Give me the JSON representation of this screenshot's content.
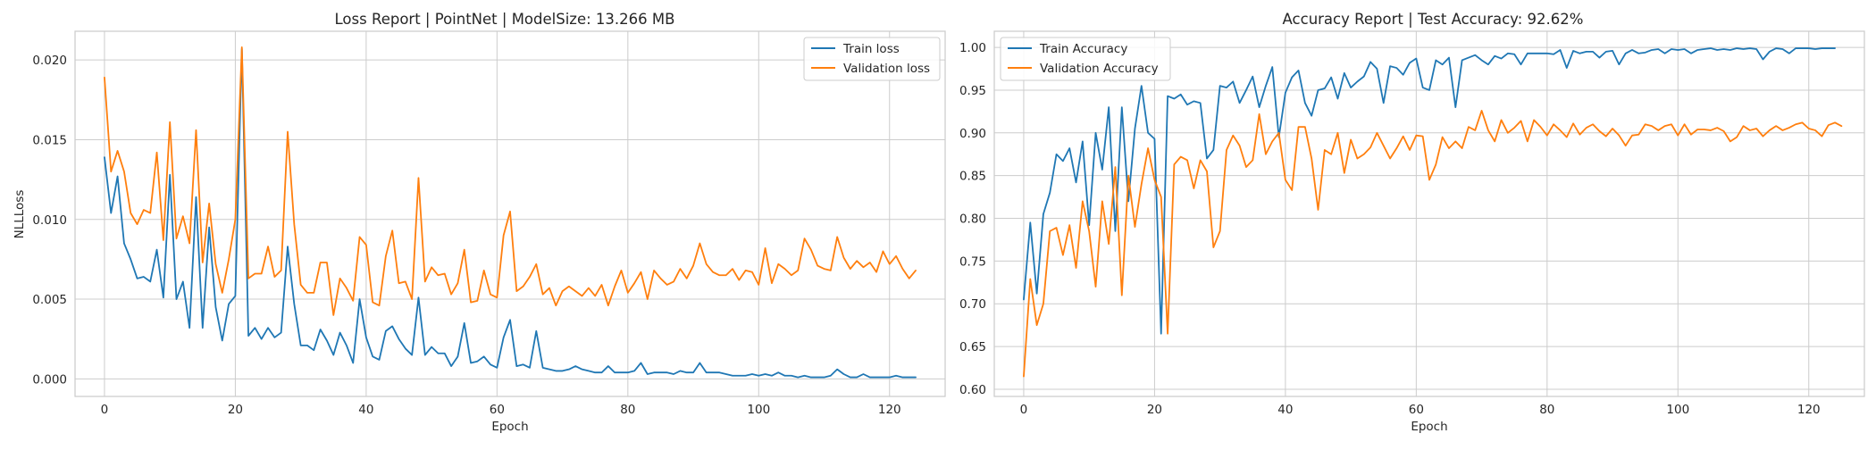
{
  "chart_data": [
    {
      "type": "line",
      "title": "Loss Report | PointNet | ModelSize: 13.266 MB",
      "xlabel": "Epoch",
      "ylabel": "NLLLoss",
      "xlim": [
        -4.5,
        128.5
      ],
      "ylim": [
        -0.0011,
        0.0218
      ],
      "xticks": [
        0,
        20,
        40,
        60,
        80,
        100,
        120
      ],
      "yticks": [
        0.0,
        0.005,
        0.01,
        0.015,
        0.02
      ],
      "ytick_format": 3,
      "grid": true,
      "legend_position": "upper right",
      "series": [
        {
          "name": "Train loss",
          "color": "#1f77b4",
          "values": [
            0.0139,
            0.0104,
            0.0127,
            0.0085,
            0.0075,
            0.0063,
            0.0064,
            0.0061,
            0.0081,
            0.0051,
            0.0128,
            0.005,
            0.0061,
            0.0032,
            0.0114,
            0.0032,
            0.0095,
            0.0045,
            0.0024,
            0.0047,
            0.0052,
            0.0207,
            0.0027,
            0.0032,
            0.0025,
            0.0032,
            0.0026,
            0.0029,
            0.0083,
            0.0047,
            0.0021,
            0.0021,
            0.0018,
            0.0031,
            0.0024,
            0.0015,
            0.0029,
            0.0021,
            0.001,
            0.005,
            0.0026,
            0.0014,
            0.0012,
            0.003,
            0.0033,
            0.0025,
            0.0019,
            0.0015,
            0.0051,
            0.0015,
            0.002,
            0.0016,
            0.0016,
            0.0008,
            0.0014,
            0.0035,
            0.001,
            0.0011,
            0.0014,
            0.0009,
            0.0007,
            0.0026,
            0.0037,
            0.0008,
            0.0009,
            0.0007,
            0.003,
            0.0007,
            0.0006,
            0.0005,
            0.0005,
            0.0006,
            0.0008,
            0.0006,
            0.0005,
            0.0004,
            0.0004,
            0.0008,
            0.0004,
            0.0004,
            0.0004,
            0.0005,
            0.001,
            0.0003,
            0.0004,
            0.0004,
            0.0004,
            0.0003,
            0.0005,
            0.0004,
            0.0004,
            0.001,
            0.0004,
            0.0004,
            0.0004,
            0.0003,
            0.0002,
            0.0002,
            0.0002,
            0.0003,
            0.0002,
            0.0003,
            0.0002,
            0.0004,
            0.0002,
            0.0002,
            0.0001,
            0.0002,
            0.0001,
            0.0001,
            0.0001,
            0.0002,
            0.0006,
            0.0003,
            0.0001,
            0.0001,
            0.0003,
            0.0001,
            0.0001,
            0.0001,
            0.0001,
            0.0002,
            0.0001,
            0.0001,
            0.0001
          ]
        },
        {
          "name": "Validation loss",
          "color": "#ff7f0e",
          "values": [
            0.0189,
            0.013,
            0.0143,
            0.013,
            0.0104,
            0.0097,
            0.0106,
            0.0104,
            0.0142,
            0.0087,
            0.0161,
            0.0088,
            0.0102,
            0.0085,
            0.0156,
            0.0073,
            0.011,
            0.0072,
            0.0054,
            0.0075,
            0.01,
            0.0208,
            0.0063,
            0.0066,
            0.0066,
            0.0083,
            0.0064,
            0.0068,
            0.0155,
            0.0097,
            0.0059,
            0.0054,
            0.0054,
            0.0073,
            0.0073,
            0.004,
            0.0063,
            0.0057,
            0.0049,
            0.0089,
            0.0084,
            0.0048,
            0.0046,
            0.0077,
            0.0093,
            0.006,
            0.0061,
            0.005,
            0.0126,
            0.0061,
            0.007,
            0.0065,
            0.0066,
            0.0053,
            0.006,
            0.0081,
            0.0048,
            0.0049,
            0.0068,
            0.0053,
            0.0051,
            0.009,
            0.0105,
            0.0055,
            0.0058,
            0.0064,
            0.0072,
            0.0053,
            0.0057,
            0.0046,
            0.0055,
            0.0058,
            0.0055,
            0.0052,
            0.0057,
            0.0052,
            0.0059,
            0.0046,
            0.0058,
            0.0068,
            0.0054,
            0.006,
            0.0067,
            0.005,
            0.0068,
            0.0063,
            0.0059,
            0.0061,
            0.0069,
            0.0063,
            0.0071,
            0.0085,
            0.0072,
            0.0067,
            0.0065,
            0.0065,
            0.0069,
            0.0062,
            0.0068,
            0.0067,
            0.0059,
            0.0082,
            0.006,
            0.0072,
            0.0069,
            0.0065,
            0.0068,
            0.0088,
            0.0081,
            0.0071,
            0.0069,
            0.0068,
            0.0089,
            0.0076,
            0.0069,
            0.0074,
            0.007,
            0.0073,
            0.0067,
            0.008,
            0.0072,
            0.0077,
            0.0069,
            0.0063,
            0.0068
          ]
        }
      ]
    },
    {
      "type": "line",
      "title": "Accuracy Report | Test Accuracy: 92.62%",
      "xlabel": "Epoch",
      "ylabel": "",
      "xlim": [
        -4.5,
        128.5
      ],
      "ylim": [
        0.5916,
        1.0189
      ],
      "xticks": [
        0,
        20,
        40,
        60,
        80,
        100,
        120
      ],
      "yticks": [
        0.6,
        0.65,
        0.7,
        0.75,
        0.8,
        0.85,
        0.9,
        0.95,
        1.0
      ],
      "ytick_format": 2,
      "grid": true,
      "legend_position": "upper left",
      "series": [
        {
          "name": "Train Accuracy",
          "color": "#1f77b4",
          "values": [
            0.705,
            0.795,
            0.712,
            0.805,
            0.83,
            0.875,
            0.867,
            0.882,
            0.842,
            0.89,
            0.792,
            0.9,
            0.857,
            0.93,
            0.785,
            0.93,
            0.82,
            0.905,
            0.955,
            0.9,
            0.893,
            0.665,
            0.943,
            0.94,
            0.945,
            0.933,
            0.937,
            0.935,
            0.87,
            0.88,
            0.955,
            0.953,
            0.96,
            0.935,
            0.95,
            0.966,
            0.93,
            0.955,
            0.977,
            0.895,
            0.947,
            0.965,
            0.973,
            0.935,
            0.92,
            0.95,
            0.952,
            0.965,
            0.94,
            0.97,
            0.953,
            0.96,
            0.966,
            0.983,
            0.975,
            0.935,
            0.978,
            0.976,
            0.968,
            0.982,
            0.987,
            0.953,
            0.95,
            0.985,
            0.98,
            0.988,
            0.93,
            0.985,
            0.988,
            0.991,
            0.985,
            0.98,
            0.99,
            0.987,
            0.993,
            0.992,
            0.98,
            0.993,
            0.993,
            0.993,
            0.993,
            0.992,
            0.997,
            0.976,
            0.996,
            0.993,
            0.995,
            0.995,
            0.988,
            0.995,
            0.996,
            0.98,
            0.993,
            0.997,
            0.993,
            0.994,
            0.997,
            0.998,
            0.993,
            0.998,
            0.997,
            0.998,
            0.993,
            0.997,
            0.998,
            0.999,
            0.997,
            0.998,
            0.997,
            0.999,
            0.998,
            0.999,
            0.998,
            0.986,
            0.995,
            0.999,
            0.998,
            0.993,
            0.999,
            0.999,
            0.999,
            0.998,
            0.999,
            0.999,
            0.999
          ]
        },
        {
          "name": "Validation Accuracy",
          "color": "#ff7f0e",
          "values": [
            0.615,
            0.729,
            0.675,
            0.7,
            0.785,
            0.789,
            0.757,
            0.792,
            0.742,
            0.82,
            0.785,
            0.72,
            0.82,
            0.77,
            0.86,
            0.71,
            0.85,
            0.79,
            0.84,
            0.882,
            0.845,
            0.825,
            0.665,
            0.863,
            0.872,
            0.868,
            0.835,
            0.868,
            0.855,
            0.766,
            0.785,
            0.88,
            0.897,
            0.885,
            0.86,
            0.868,
            0.922,
            0.875,
            0.89,
            0.9,
            0.845,
            0.833,
            0.907,
            0.907,
            0.87,
            0.81,
            0.88,
            0.875,
            0.9,
            0.853,
            0.892,
            0.87,
            0.875,
            0.883,
            0.9,
            0.885,
            0.87,
            0.882,
            0.896,
            0.88,
            0.897,
            0.896,
            0.845,
            0.863,
            0.895,
            0.882,
            0.89,
            0.882,
            0.907,
            0.903,
            0.926,
            0.903,
            0.89,
            0.915,
            0.9,
            0.906,
            0.914,
            0.89,
            0.915,
            0.907,
            0.897,
            0.91,
            0.903,
            0.895,
            0.911,
            0.898,
            0.906,
            0.91,
            0.902,
            0.896,
            0.905,
            0.897,
            0.885,
            0.897,
            0.898,
            0.91,
            0.908,
            0.903,
            0.908,
            0.91,
            0.897,
            0.91,
            0.898,
            0.904,
            0.904,
            0.903,
            0.906,
            0.902,
            0.89,
            0.895,
            0.908,
            0.903,
            0.905,
            0.896,
            0.903,
            0.908,
            0.903,
            0.906,
            0.91,
            0.912,
            0.905,
            0.903,
            0.896,
            0.909,
            0.912,
            0.908
          ]
        }
      ]
    }
  ]
}
